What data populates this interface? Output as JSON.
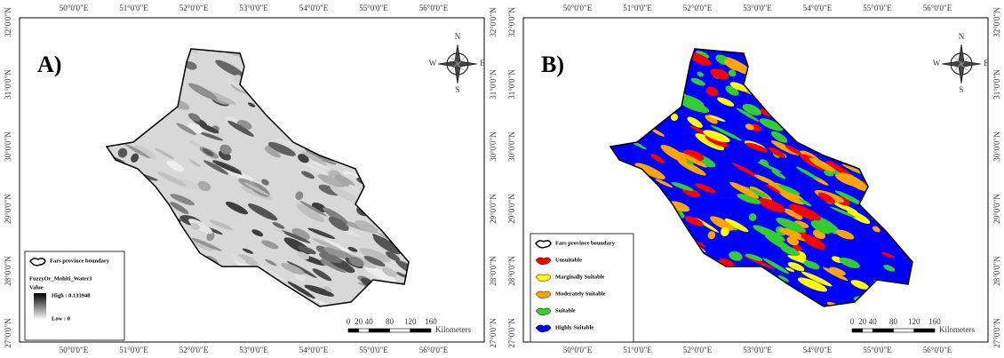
{
  "panels": [
    {
      "label": "A)",
      "legend": {
        "boundary": "Fars province boundary",
        "layer": "FuzzyOr_Mohiti_Water3",
        "field": "Value",
        "high": "High : 0.133948",
        "low": "Low : 0"
      }
    },
    {
      "label": "B)",
      "legend": {
        "boundary": "Fars province boundary",
        "classes": [
          {
            "name": "Unsuitable",
            "color": "#ff0000"
          },
          {
            "name": "Marginally Suitable",
            "color": "#ffff00"
          },
          {
            "name": "Moderately Suitable",
            "color": "#ffa500"
          },
          {
            "name": "Suitable",
            "color": "#33cc33"
          },
          {
            "name": "Highly Suitable",
            "color": "#0000ff"
          }
        ]
      }
    }
  ],
  "longitudes": [
    "50°0'0\"E",
    "51°0'0\"E",
    "52°0'0\"E",
    "53°0'0\"E",
    "54°0'0\"E",
    "55°0'0\"E",
    "56°0'0\"E"
  ],
  "latitudes": [
    "32°0'0\"N",
    "31°0'0\"N",
    "30°0'0\"N",
    "29°0'0\"N",
    "28°0'0\"N",
    "27°0'0\"N"
  ],
  "compass": {
    "n": "N",
    "e": "E",
    "s": "S",
    "w": "W"
  },
  "scale": {
    "ticks": [
      0,
      20,
      40,
      80,
      120,
      160
    ],
    "unit": "Kilometers"
  }
}
